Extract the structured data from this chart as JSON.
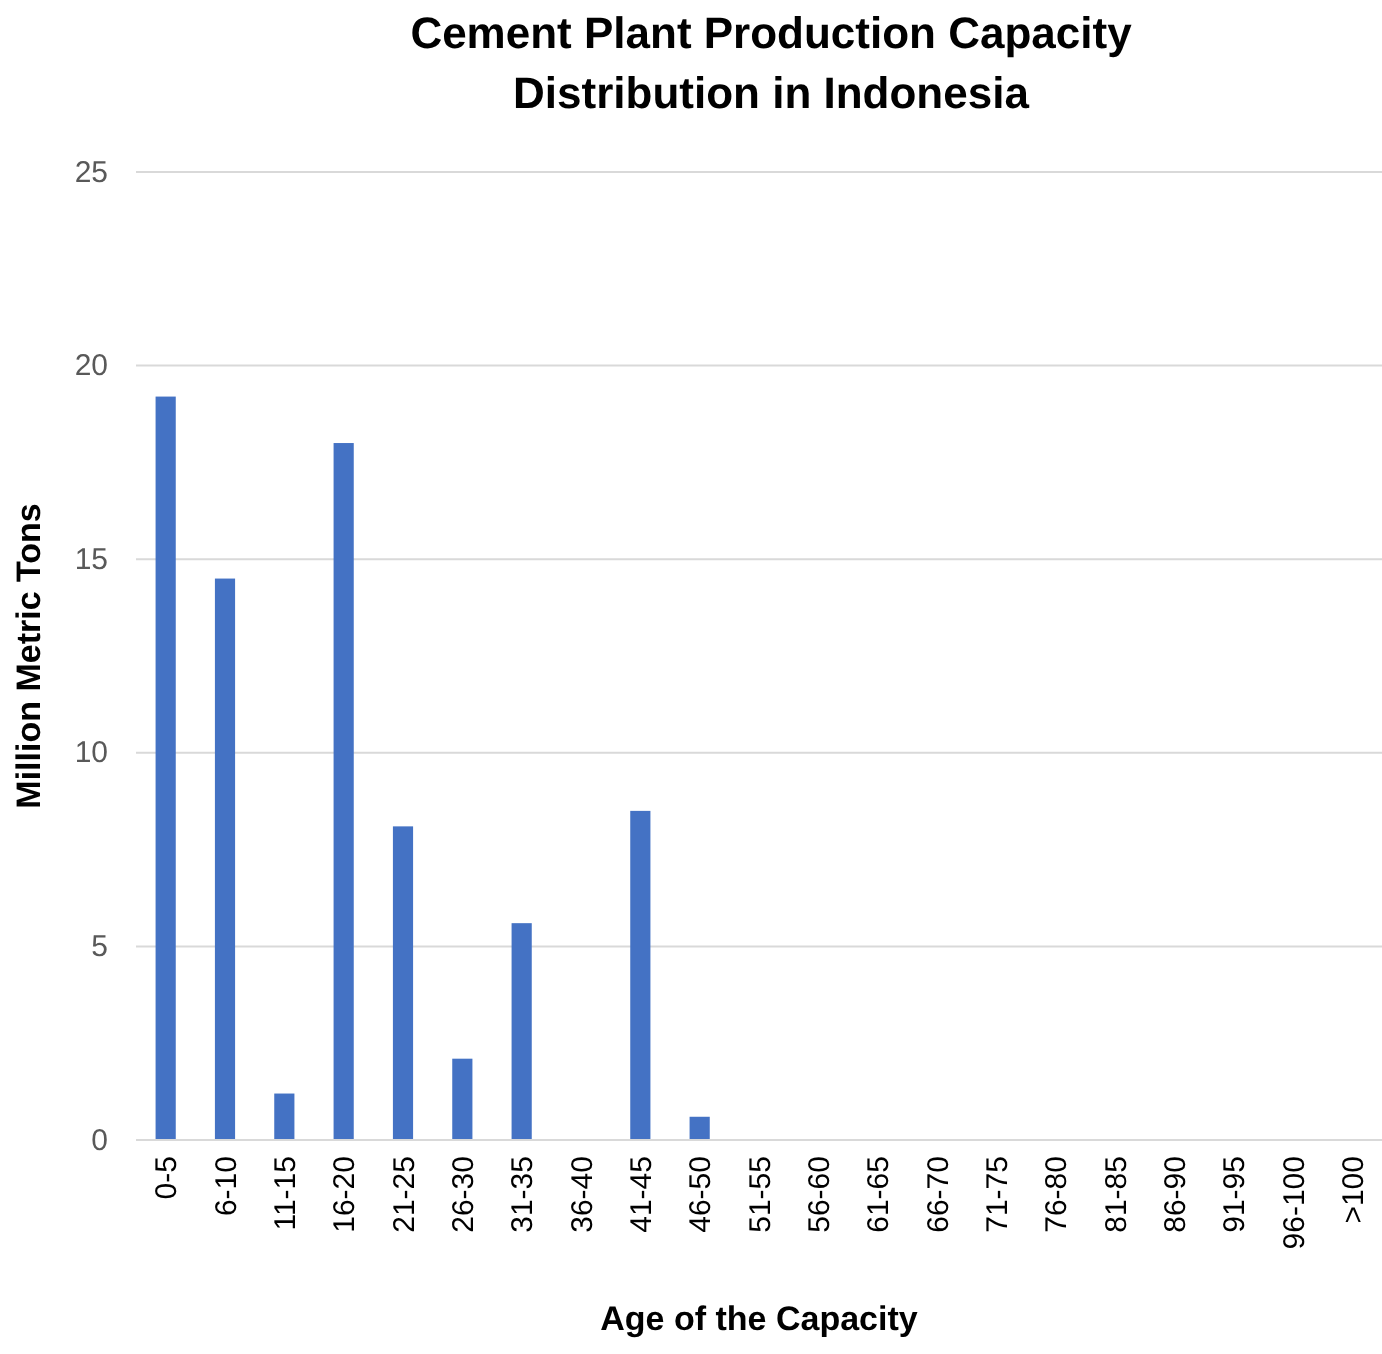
{
  "chart_data": {
    "type": "bar",
    "title": "Cement Plant Production Capacity Distribution in Indonesia",
    "xlabel": "Age of the Capacity",
    "ylabel": "Million Metric Tons",
    "categories": [
      "0-5",
      "6-10",
      "11-15",
      "16-20",
      "21-25",
      "26-30",
      "31-35",
      "36-40",
      "41-45",
      "46-50",
      "51-55",
      "56-60",
      "61-65",
      "66-70",
      "71-75",
      "76-80",
      "81-85",
      "86-90",
      "91-95",
      "96-100",
      ">100"
    ],
    "values": [
      19.2,
      14.5,
      1.2,
      18.0,
      8.1,
      2.1,
      5.6,
      0,
      8.5,
      0.6,
      0,
      0,
      0,
      0,
      0,
      0,
      0,
      0,
      0,
      0,
      0
    ],
    "color": "#4472c4",
    "ylim": [
      0,
      25
    ],
    "yticks": [
      0,
      5,
      10,
      15,
      20,
      25
    ],
    "grid": "y"
  }
}
